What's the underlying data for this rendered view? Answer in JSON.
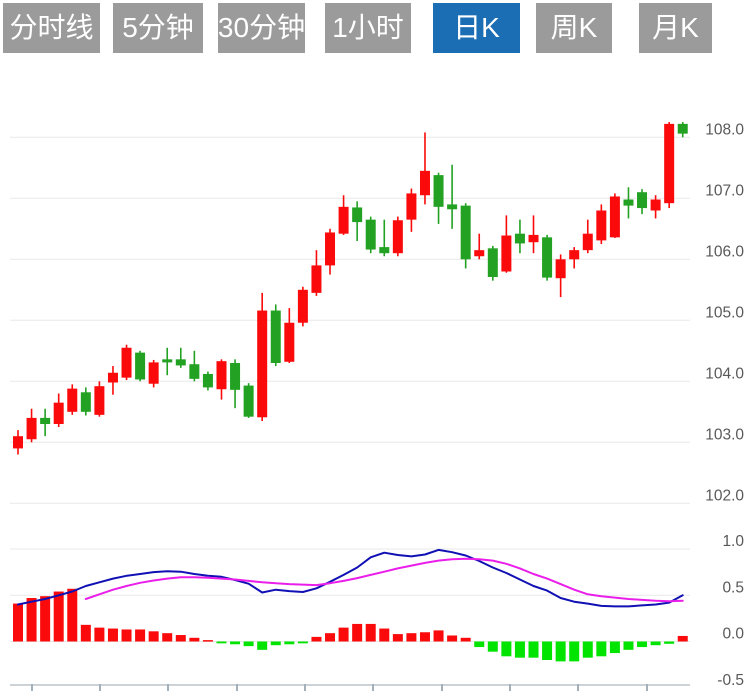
{
  "toolbar": {
    "tabs": [
      {
        "label": "分时线",
        "active": false
      },
      {
        "label": "5分钟",
        "active": false
      },
      {
        "label": "30分钟",
        "active": false
      },
      {
        "label": "1小时",
        "active": false
      },
      {
        "label": "日K",
        "active": true
      },
      {
        "label": "周K",
        "active": false
      },
      {
        "label": "月K",
        "active": false
      }
    ]
  },
  "ui_colors": {
    "tab_bg": "#9b9b9b",
    "tab_active_bg": "#1c6eb4",
    "tab_text": "#ffffff",
    "axis_text": "#595959",
    "grid_line": "#e8e8e8",
    "axis_line": "#ccd2d6",
    "axis_tick": "#a3b0ba"
  },
  "chart_data": {
    "type": "candlestick+macd",
    "selected_timeframe": "日K",
    "colors": {
      "bullish": "#fa0a0a",
      "bearish": "#22a122",
      "hist_positive": "#fa0a0a",
      "hist_negative": "#00e400",
      "dif_line": "#1010b4",
      "dea_line": "#ea1eea"
    },
    "price_pane": {
      "ylim": [
        101.5,
        108.5
      ],
      "y_ticks": [
        {
          "label": "108.0",
          "value": 108.0
        },
        {
          "label": "107.0",
          "value": 107.0
        },
        {
          "label": "106.0",
          "value": 106.0
        },
        {
          "label": "105.0",
          "value": 105.0
        },
        {
          "label": "104.0",
          "value": 104.0
        },
        {
          "label": "103.0",
          "value": 103.0
        },
        {
          "label": "102.0",
          "value": 102.0
        }
      ],
      "ohlc_order": [
        "open",
        "high",
        "low",
        "close"
      ],
      "candles": [
        [
          102.9,
          103.2,
          102.8,
          103.1
        ],
        [
          103.05,
          103.55,
          103.0,
          103.4
        ],
        [
          103.4,
          103.55,
          103.1,
          103.3
        ],
        [
          103.3,
          103.8,
          103.25,
          103.65
        ],
        [
          103.5,
          103.95,
          103.45,
          103.88
        ],
        [
          103.82,
          103.9,
          103.44,
          103.5
        ],
        [
          103.45,
          104.0,
          103.42,
          103.92
        ],
        [
          103.98,
          104.25,
          103.78,
          104.14
        ],
        [
          104.06,
          104.6,
          104.02,
          104.55
        ],
        [
          104.47,
          104.5,
          104.0,
          104.03
        ],
        [
          103.96,
          104.35,
          103.9,
          104.31
        ],
        [
          104.36,
          104.55,
          104.1,
          104.31
        ],
        [
          104.36,
          104.55,
          104.22,
          104.26
        ],
        [
          104.28,
          104.5,
          104.0,
          104.04
        ],
        [
          104.12,
          104.16,
          103.85,
          103.9
        ],
        [
          103.87,
          104.36,
          103.7,
          104.33
        ],
        [
          104.3,
          104.36,
          103.56,
          103.86
        ],
        [
          103.93,
          103.97,
          103.4,
          103.42
        ],
        [
          103.41,
          105.45,
          103.35,
          105.16
        ],
        [
          105.16,
          105.26,
          104.25,
          104.3
        ],
        [
          104.32,
          105.2,
          104.3,
          104.96
        ],
        [
          104.96,
          105.55,
          104.9,
          105.5
        ],
        [
          105.45,
          106.15,
          105.4,
          105.9
        ],
        [
          105.9,
          106.5,
          105.75,
          106.44
        ],
        [
          106.42,
          107.05,
          106.4,
          106.86
        ],
        [
          106.85,
          106.95,
          106.3,
          106.61
        ],
        [
          106.65,
          106.7,
          106.1,
          106.16
        ],
        [
          106.2,
          106.65,
          106.05,
          106.1
        ],
        [
          106.1,
          106.7,
          106.05,
          106.64
        ],
        [
          106.65,
          107.16,
          106.45,
          107.08
        ],
        [
          107.05,
          108.08,
          106.9,
          107.45
        ],
        [
          107.38,
          107.42,
          106.58,
          106.86
        ],
        [
          106.9,
          107.55,
          106.5,
          106.82
        ],
        [
          106.88,
          106.92,
          105.85,
          106.0
        ],
        [
          106.05,
          106.42,
          106.0,
          106.15
        ],
        [
          106.18,
          106.22,
          105.65,
          105.71
        ],
        [
          105.8,
          106.72,
          105.78,
          106.39
        ],
        [
          106.42,
          106.65,
          106.1,
          106.26
        ],
        [
          106.28,
          106.72,
          106.1,
          106.4
        ],
        [
          106.36,
          106.4,
          105.65,
          105.7
        ],
        [
          105.69,
          106.08,
          105.38,
          106.0
        ],
        [
          106.0,
          106.2,
          105.85,
          106.15
        ],
        [
          106.15,
          106.65,
          106.1,
          106.42
        ],
        [
          106.31,
          106.9,
          106.25,
          106.8
        ],
        [
          106.36,
          107.08,
          106.35,
          107.03
        ],
        [
          106.98,
          107.18,
          106.67,
          106.88
        ],
        [
          107.1,
          107.15,
          106.74,
          106.84
        ],
        [
          106.8,
          107.05,
          106.67,
          106.98
        ],
        [
          106.92,
          108.25,
          106.84,
          108.22
        ],
        [
          108.22,
          108.25,
          108.0,
          108.06
        ]
      ]
    },
    "macd_pane": {
      "ylim": [
        -0.55,
        1.05
      ],
      "y_ticks": [
        {
          "label": "1.0",
          "value": 1.0
        },
        {
          "label": "0.5",
          "value": 0.5
        },
        {
          "label": "0.0",
          "value": 0.0
        },
        {
          "label": "-0.5",
          "value": -0.5
        }
      ],
      "histogram": [
        0.41,
        0.47,
        0.49,
        0.54,
        0.57,
        0.18,
        0.15,
        0.14,
        0.13,
        0.13,
        0.11,
        0.09,
        0.07,
        0.04,
        0.015,
        -0.02,
        -0.03,
        -0.05,
        -0.09,
        -0.04,
        -0.03,
        -0.02,
        0.05,
        0.09,
        0.15,
        0.19,
        0.19,
        0.14,
        0.08,
        0.09,
        0.1,
        0.12,
        0.065,
        0.04,
        -0.06,
        -0.11,
        -0.16,
        -0.175,
        -0.175,
        -0.2,
        -0.215,
        -0.215,
        -0.175,
        -0.16,
        -0.125,
        -0.09,
        -0.06,
        -0.04,
        -0.025,
        0.06
      ],
      "dif": [
        0.4,
        0.43,
        0.46,
        0.5,
        0.54,
        0.6,
        0.64,
        0.68,
        0.71,
        0.73,
        0.75,
        0.76,
        0.755,
        0.73,
        0.71,
        0.7,
        0.665,
        0.625,
        0.53,
        0.56,
        0.545,
        0.535,
        0.575,
        0.645,
        0.72,
        0.8,
        0.91,
        0.96,
        0.935,
        0.92,
        0.94,
        0.99,
        0.965,
        0.93,
        0.87,
        0.8,
        0.74,
        0.67,
        0.6,
        0.55,
        0.47,
        0.43,
        0.41,
        0.385,
        0.38,
        0.38,
        0.39,
        0.4,
        0.42,
        0.5
      ],
      "dea": [
        null,
        null,
        null,
        null,
        null,
        0.46,
        0.51,
        0.56,
        0.6,
        0.635,
        0.66,
        0.68,
        0.695,
        0.695,
        0.69,
        0.68,
        0.67,
        0.655,
        0.64,
        0.63,
        0.62,
        0.615,
        0.61,
        0.63,
        0.655,
        0.685,
        0.72,
        0.755,
        0.79,
        0.82,
        0.85,
        0.875,
        0.89,
        0.895,
        0.89,
        0.875,
        0.84,
        0.79,
        0.73,
        0.68,
        0.62,
        0.56,
        0.51,
        0.49,
        0.475,
        0.46,
        0.45,
        0.44,
        0.435,
        0.44
      ]
    }
  }
}
